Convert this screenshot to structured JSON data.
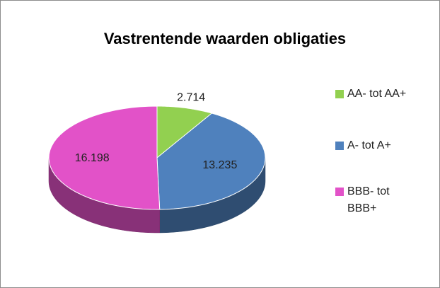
{
  "chart_data": {
    "type": "pie",
    "title": "Vastrentende waarden obligaties",
    "categories": [
      "AA- tot AA+",
      "A- tot A+",
      "BBB- tot BBB+"
    ],
    "values": [
      2.714,
      13.235,
      16.198
    ],
    "colors": [
      "#92d050",
      "#4f81bd",
      "#e252c8"
    ],
    "legend": "right"
  }
}
